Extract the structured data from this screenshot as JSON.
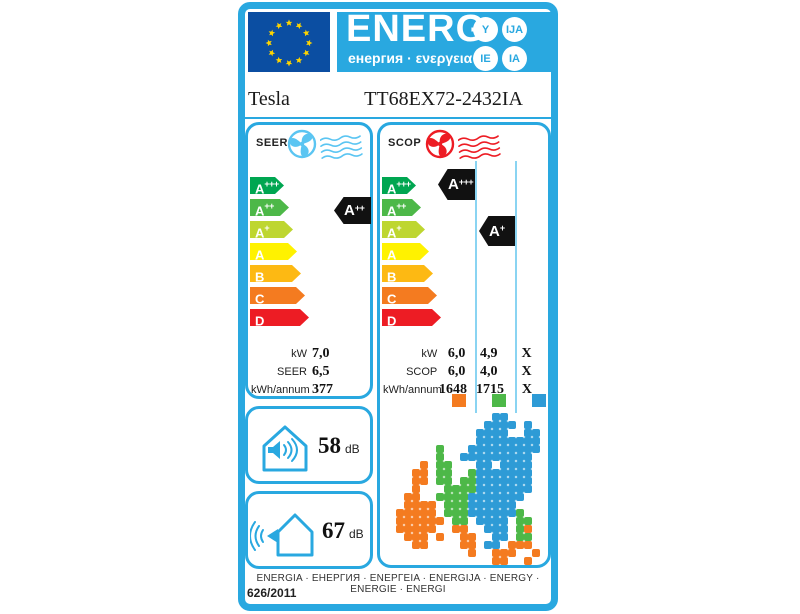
{
  "colors": {
    "frame": "#29A8E0",
    "flag_blue": "#0B4EA2",
    "star_yellow": "#FFD500",
    "cool": "#5BC5F2",
    "heat": "#ED1C24",
    "indicator_black": "#111111"
  },
  "header": {
    "energ": "ENERG",
    "subtitle": "енергия · ενεργεια",
    "badges": [
      "Y",
      "IJA",
      "IE",
      "IA"
    ]
  },
  "product": {
    "brand": "Tesla",
    "model": "TT68EX72-2432IA"
  },
  "ratings": [
    {
      "letter": "A",
      "sup": "+++",
      "color": "#00A651"
    },
    {
      "letter": "A",
      "sup": "++",
      "color": "#4DB848"
    },
    {
      "letter": "A",
      "sup": "+",
      "color": "#BED630"
    },
    {
      "letter": "A",
      "sup": "",
      "color": "#FFF200"
    },
    {
      "letter": "B",
      "sup": "",
      "color": "#FDB913"
    },
    {
      "letter": "C",
      "sup": "",
      "color": "#F47B20"
    },
    {
      "letter": "D",
      "sup": "",
      "color": "#ED1C24"
    }
  ],
  "seer": {
    "label": "SEER",
    "indicator": {
      "letter": "A",
      "sup": "++"
    },
    "rows": [
      {
        "label": "kW",
        "c1": "7,0"
      },
      {
        "label": "SEER",
        "c1": "6,5"
      },
      {
        "label": "kWh/annum",
        "c1": "377"
      }
    ]
  },
  "scop": {
    "label": "SCOP",
    "indicators": [
      {
        "letter": "A",
        "sup": "+++"
      },
      {
        "letter": "A",
        "sup": "+"
      }
    ],
    "rows": [
      {
        "label": "kW",
        "c1": "6,0",
        "c2": "4,9",
        "c3": "X"
      },
      {
        "label": "SCOP",
        "c1": "6,0",
        "c2": "4,0",
        "c3": "X"
      },
      {
        "label": "kWh/annum",
        "c1": "1648",
        "c2": "1715",
        "c3": "X"
      }
    ],
    "zone_colors": [
      "#F47B20",
      "#4DB848",
      "#2E9BD6"
    ],
    "map_rows": [
      "............bb.....",
      "...........bbbb.b..",
      "..........bbbb..bb.",
      "..........bbbbbbbb.",
      ".....g...bbbbbbbbb.",
      ".....g..bbbbbbbbb..",
      "...o.gg...bb.bbbb..",
      "..oo.gg..gbbbbbbb..",
      "..oo.gg.ggbbbbbbb..",
      "..o...ggggbbbbbbb..",
      ".oo..ggggbbbbbbb...",
      ".oooo.gggbbbbbb....",
      "ooooo.gggbbbbbbg...",
      "oooooo.gg.bbbb.gg..",
      "ooooo..oo..bbb.go..",
      ".ooo.o..oo..bb.gg..",
      "..oo....oo.bb.ooo..",
      ".........o..ooo..o.",
      "............oo..o.."
    ]
  },
  "noise": {
    "indoor": {
      "value": "58",
      "unit": "dB"
    },
    "outdoor": {
      "value": "67",
      "unit": "dB"
    }
  },
  "footer": {
    "words": "ENERGIA · ЕНЕРГИЯ · ΕΝΕΡΓΕΙΑ · ENERGIJA · ENERGY · ENERGIE · ENERGI",
    "regulation": "626/2011"
  }
}
